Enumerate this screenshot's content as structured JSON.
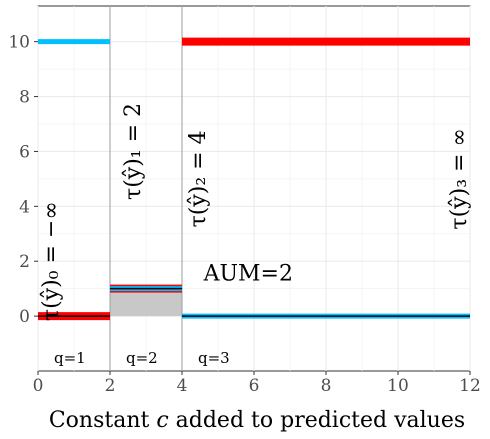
{
  "chart_data": {
    "type": "line",
    "title": "",
    "xlabel": "Constant c added to predicted values",
    "xlabel_parts": {
      "before": "Constant ",
      "var": "c",
      "after": " added to predicted values"
    },
    "ylabel": "",
    "xlim": [
      0,
      12
    ],
    "ylim": [
      -2,
      11.3
    ],
    "x_ticks": [
      0,
      2,
      4,
      6,
      8,
      10,
      12
    ],
    "y_ticks": [
      0,
      2,
      4,
      6,
      8,
      10
    ],
    "grid": true,
    "thresholds": [
      {
        "label": "τ(ŷ)₀ = −∞",
        "x": 0,
        "value": "-Infinity"
      },
      {
        "label": "τ(ŷ)₁ = 2",
        "x": 2,
        "value": 2
      },
      {
        "label": "τ(ŷ)₂ = 4",
        "x": 4,
        "value": 4
      },
      {
        "label": "τ(ŷ)₃ = ∞",
        "x": 12,
        "value": "Infinity"
      }
    ],
    "segments": [
      {
        "q": "q=1",
        "x": [
          0,
          2
        ],
        "red": 0,
        "blue": 10
      },
      {
        "q": "q=2",
        "x": [
          2,
          4
        ],
        "red": 1,
        "blue": 1
      },
      {
        "q": "q=3",
        "x": [
          4,
          12
        ],
        "red": 10,
        "blue": 0
      }
    ],
    "shaded_region": {
      "x": [
        2,
        4
      ],
      "y": [
        0,
        1
      ],
      "color": "#c8c8c8"
    },
    "aum_label": "AUM=2",
    "colors": {
      "red": "#ff0000",
      "blue": "#00bfff",
      "black": "#000000"
    }
  }
}
